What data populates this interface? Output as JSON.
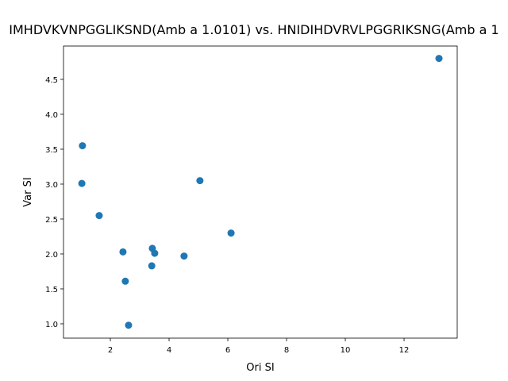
{
  "chart_data": {
    "type": "scatter",
    "title": "IMHDVKVNPGGLIKSND(Amb a 1.0101) vs. HNIDIHDVRVLPGGRIKSNG(Amb a 1",
    "x_label": "Ori SI",
    "y_label": "Var SI",
    "x": [
      13.19,
      1.05,
      1.03,
      5.05,
      1.62,
      6.11,
      2.43,
      3.43,
      3.51,
      4.51,
      3.41,
      2.51,
      2.62
    ],
    "series": [
      {
        "color": "#1f77b4",
        "values": [
          4.8,
          3.55,
          3.01,
          3.05,
          2.55,
          2.3,
          2.03,
          2.08,
          2.01,
          1.97,
          1.83,
          1.61,
          0.98
        ]
      }
    ],
    "xlim": [
      0.405,
      13.81
    ],
    "ylim": [
      0.795,
      4.977
    ],
    "xticks": [
      2,
      4,
      6,
      8,
      10,
      12
    ],
    "yticks": [
      {
        "value": 1.0,
        "label": "1.0"
      },
      {
        "value": 1.5,
        "label": "1.5"
      },
      {
        "value": 2.0,
        "label": "2.0"
      },
      {
        "value": 2.5,
        "label": "2.5"
      },
      {
        "value": 3.0,
        "label": "3.0"
      },
      {
        "value": 3.5,
        "label": "3.5"
      },
      {
        "value": 4.0,
        "label": "4.0"
      },
      {
        "value": 4.5,
        "label": "4.5"
      }
    ],
    "grid": false
  }
}
